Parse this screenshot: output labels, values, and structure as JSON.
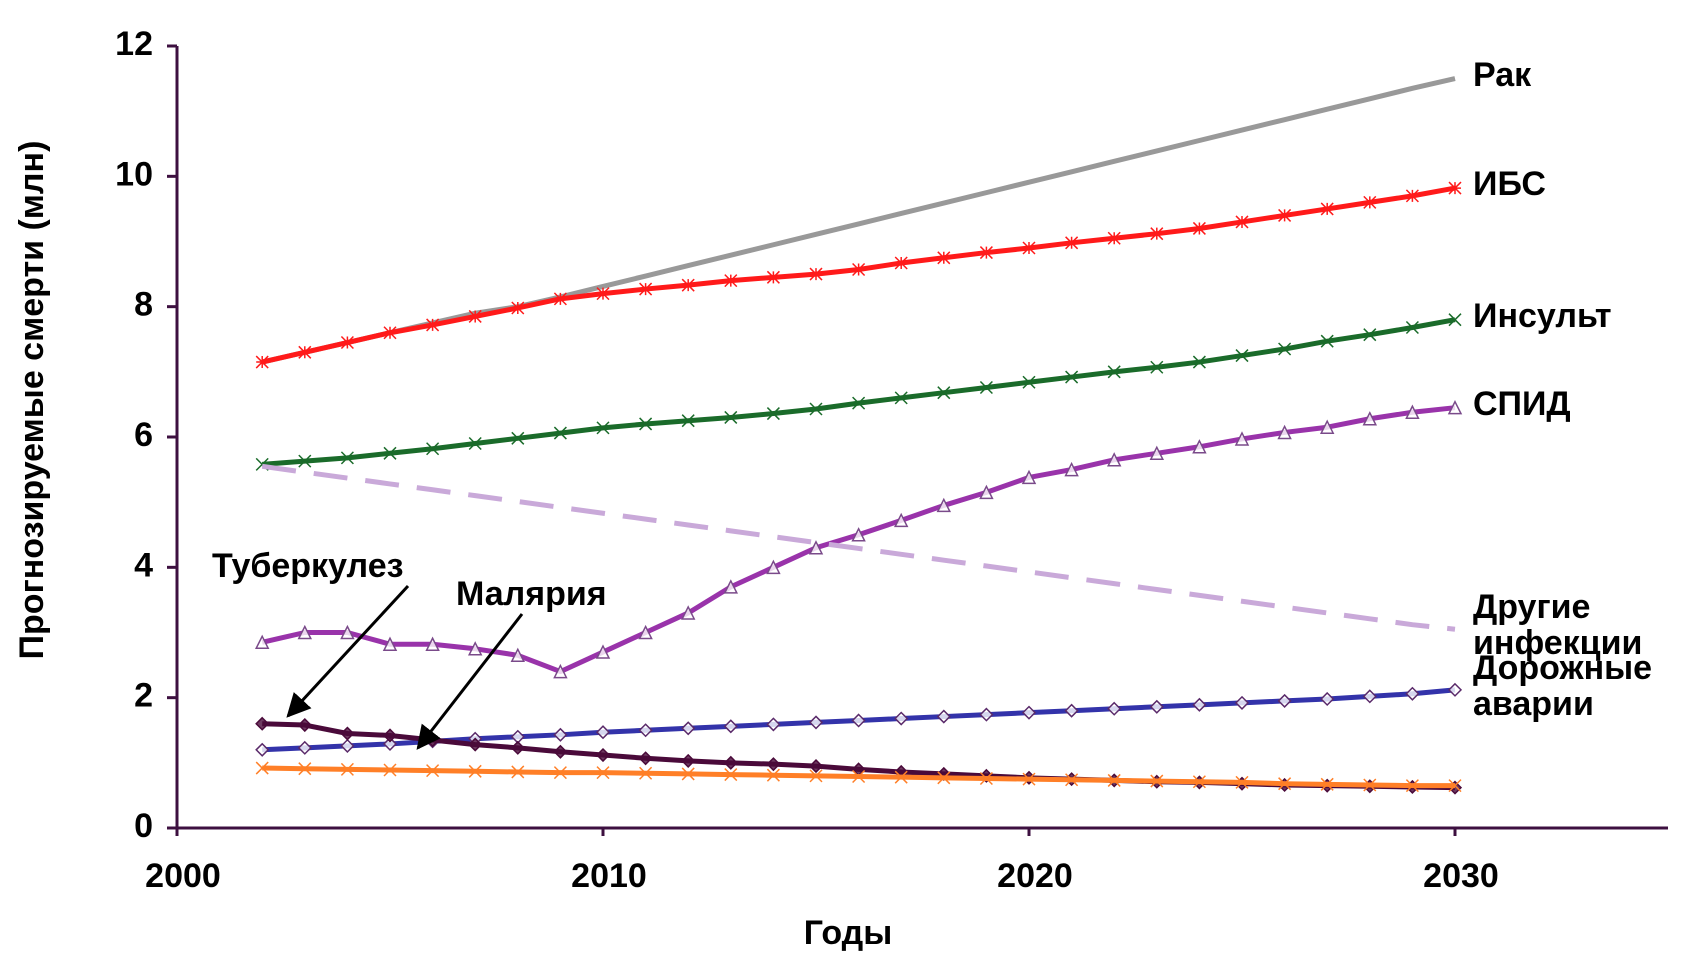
{
  "chart_data": {
    "type": "line",
    "x_label": "Годы",
    "y_label": "Прогнозируемые смерти (млн)",
    "x": [
      2002,
      2003,
      2004,
      2005,
      2006,
      2007,
      2008,
      2009,
      2010,
      2011,
      2012,
      2013,
      2014,
      2015,
      2016,
      2017,
      2018,
      2019,
      2020,
      2021,
      2022,
      2023,
      2024,
      2025,
      2026,
      2027,
      2028,
      2029,
      2030
    ],
    "xlim": [
      2000,
      2035
    ],
    "xticks": [
      2000,
      2010,
      2020,
      2030
    ],
    "ylim": [
      0,
      12
    ],
    "yticks": [
      0,
      2,
      4,
      6,
      8,
      10,
      12
    ],
    "series": [
      {
        "name": "Рак",
        "color": "#999999",
        "marker": "none",
        "values": [
          7.15,
          7.3,
          7.45,
          7.6,
          7.75,
          7.9,
          8.0,
          8.15,
          8.31,
          8.47,
          8.63,
          8.79,
          8.95,
          9.11,
          9.27,
          9.43,
          9.59,
          9.75,
          9.91,
          10.07,
          10.23,
          10.39,
          10.55,
          10.71,
          10.87,
          11.03,
          11.19,
          11.35,
          11.5
        ]
      },
      {
        "name": "ИБС",
        "color": "#ff1a1a",
        "marker": "star",
        "values": [
          7.15,
          7.3,
          7.45,
          7.6,
          7.72,
          7.85,
          7.98,
          8.12,
          8.2,
          8.27,
          8.33,
          8.4,
          8.45,
          8.5,
          8.57,
          8.67,
          8.75,
          8.83,
          8.9,
          8.98,
          9.05,
          9.12,
          9.2,
          9.3,
          9.4,
          9.5,
          9.6,
          9.7,
          9.82
        ]
      },
      {
        "name": "Инсульт",
        "color": "#1a6b2a",
        "marker": "x",
        "values": [
          5.58,
          5.63,
          5.68,
          5.75,
          5.82,
          5.9,
          5.98,
          6.06,
          6.14,
          6.2,
          6.25,
          6.3,
          6.36,
          6.43,
          6.52,
          6.6,
          6.68,
          6.76,
          6.84,
          6.92,
          7.0,
          7.07,
          7.15,
          7.25,
          7.35,
          7.47,
          7.57,
          7.68,
          7.8
        ]
      },
      {
        "name": "СПИД",
        "color": "#9933aa",
        "marker": "triangle",
        "values": [
          2.85,
          3.0,
          3.0,
          2.82,
          2.82,
          2.75,
          2.65,
          2.4,
          2.7,
          3.0,
          3.3,
          3.7,
          4.0,
          4.3,
          4.5,
          4.72,
          4.95,
          5.15,
          5.38,
          5.5,
          5.65,
          5.75,
          5.85,
          5.97,
          6.07,
          6.15,
          6.28,
          6.38,
          6.45
        ]
      },
      {
        "name": "Другие инфекции",
        "color": "#c9a9d9",
        "marker": "none",
        "dashed": true,
        "values": [
          5.55,
          5.46,
          5.37,
          5.28,
          5.19,
          5.1,
          5.01,
          4.92,
          4.83,
          4.74,
          4.65,
          4.56,
          4.47,
          4.38,
          4.29,
          4.2,
          4.11,
          4.02,
          3.93,
          3.84,
          3.75,
          3.66,
          3.57,
          3.48,
          3.39,
          3.3,
          3.21,
          3.12,
          3.05
        ]
      },
      {
        "name": "Дорожные аварии",
        "color": "#3333aa",
        "marker": "diamond",
        "values": [
          1.2,
          1.23,
          1.26,
          1.29,
          1.33,
          1.37,
          1.4,
          1.43,
          1.47,
          1.5,
          1.53,
          1.56,
          1.59,
          1.62,
          1.65,
          1.68,
          1.71,
          1.74,
          1.77,
          1.8,
          1.83,
          1.86,
          1.89,
          1.92,
          1.95,
          1.98,
          2.02,
          2.06,
          2.12
        ]
      },
      {
        "name": "Туберкулез",
        "color": "#4a0a3a",
        "marker": "diamond",
        "values": [
          1.6,
          1.58,
          1.45,
          1.42,
          1.35,
          1.28,
          1.23,
          1.17,
          1.12,
          1.07,
          1.03,
          1.0,
          0.98,
          0.95,
          0.9,
          0.86,
          0.83,
          0.8,
          0.77,
          0.75,
          0.73,
          0.71,
          0.7,
          0.68,
          0.66,
          0.65,
          0.64,
          0.63,
          0.62
        ]
      },
      {
        "name": "Малярия",
        "color": "#ff7f27",
        "marker": "x",
        "values": [
          0.92,
          0.91,
          0.9,
          0.89,
          0.88,
          0.87,
          0.86,
          0.85,
          0.85,
          0.84,
          0.83,
          0.82,
          0.81,
          0.8,
          0.79,
          0.78,
          0.77,
          0.76,
          0.75,
          0.74,
          0.73,
          0.72,
          0.71,
          0.7,
          0.68,
          0.67,
          0.66,
          0.65,
          0.65
        ]
      }
    ]
  }
}
